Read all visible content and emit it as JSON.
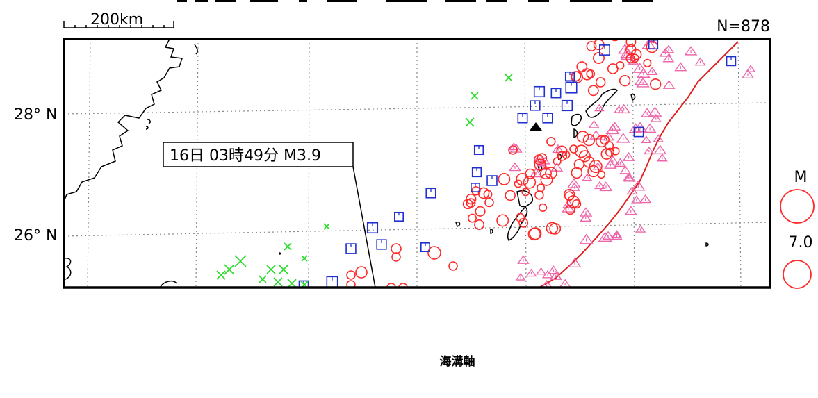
{
  "map": {
    "scale_bar_label": "200km",
    "count_label": "N=878",
    "lat_labels": [
      "28° N",
      "26° N"
    ],
    "annotation_label": "16日 03時49分 M3.9",
    "legend": {
      "title": "M",
      "value_label": "7.0"
    },
    "trench_caption": "海溝軸",
    "colors": {
      "circle": "#ff2a2a",
      "triangle": "#ee66aa",
      "square": "#1f2fd0",
      "cross": "#22dd22",
      "trench": "#e11d1d",
      "coast": "#000000",
      "grid": "#8a8a8a"
    }
  }
}
